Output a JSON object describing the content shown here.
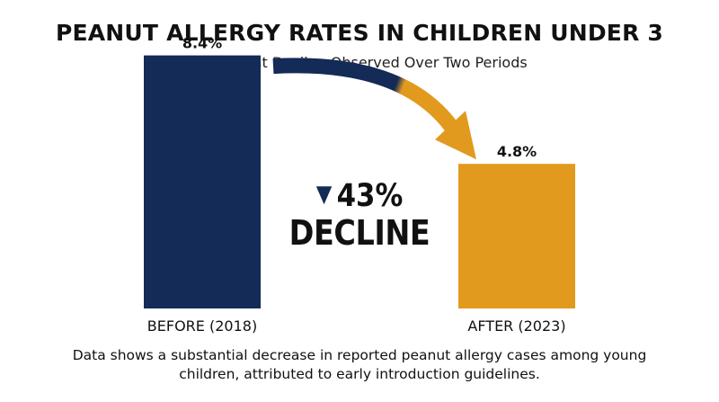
{
  "chart_data": {
    "type": "bar",
    "title": "PEANUT ALLERGY RATES IN CHILDREN UNDER 3",
    "subtitle": "Significant Decline Observed Over Two Periods",
    "categories": [
      "BEFORE (2018)",
      "AFTER (2023)"
    ],
    "values": [
      8.4,
      4.8
    ],
    "value_labels": [
      "8.4%",
      "4.8%"
    ],
    "unit": "%",
    "ylim": [
      0,
      10
    ],
    "grid": false,
    "xlabel": "",
    "ylabel": "",
    "colors": [
      "#142a57",
      "#e19a1e"
    ],
    "annotation": {
      "icon": "down-triangle-icon",
      "percent": "43%",
      "word": "DECLINE"
    }
  },
  "footnote": "Data shows a substantial decrease in reported peanut allergy cases among young children, attributed to early introduction guidelines."
}
